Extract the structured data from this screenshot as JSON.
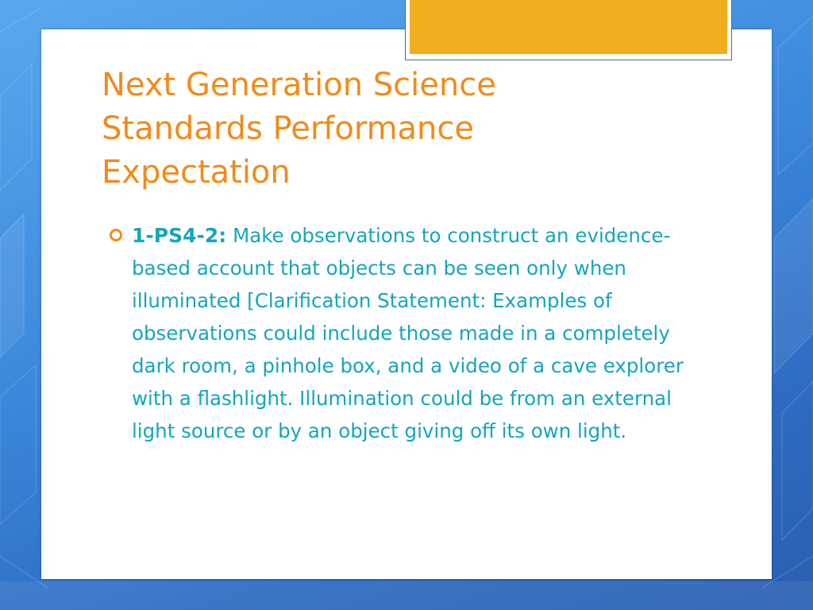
{
  "slide": {
    "title": "Next Generation Science Standards Performance Expectation",
    "bullets": [
      {
        "icon": "ring-bullet-icon",
        "code": "1-PS4-2:",
        "text": "Make observations to construct an evidence-based account that objects can be seen only when illuminated [Clarification Statement: Examples of observations could include those made in a completely dark room, a pinhole box, and a video of a cave explorer with a flashlight. Illumination could be from an external light source or by an object giving off its own light."
      }
    ]
  },
  "colors": {
    "background": "#3b87db",
    "accent": "#f0ae1e",
    "title": "#f28a1a",
    "body_text": "#14a6b8"
  }
}
